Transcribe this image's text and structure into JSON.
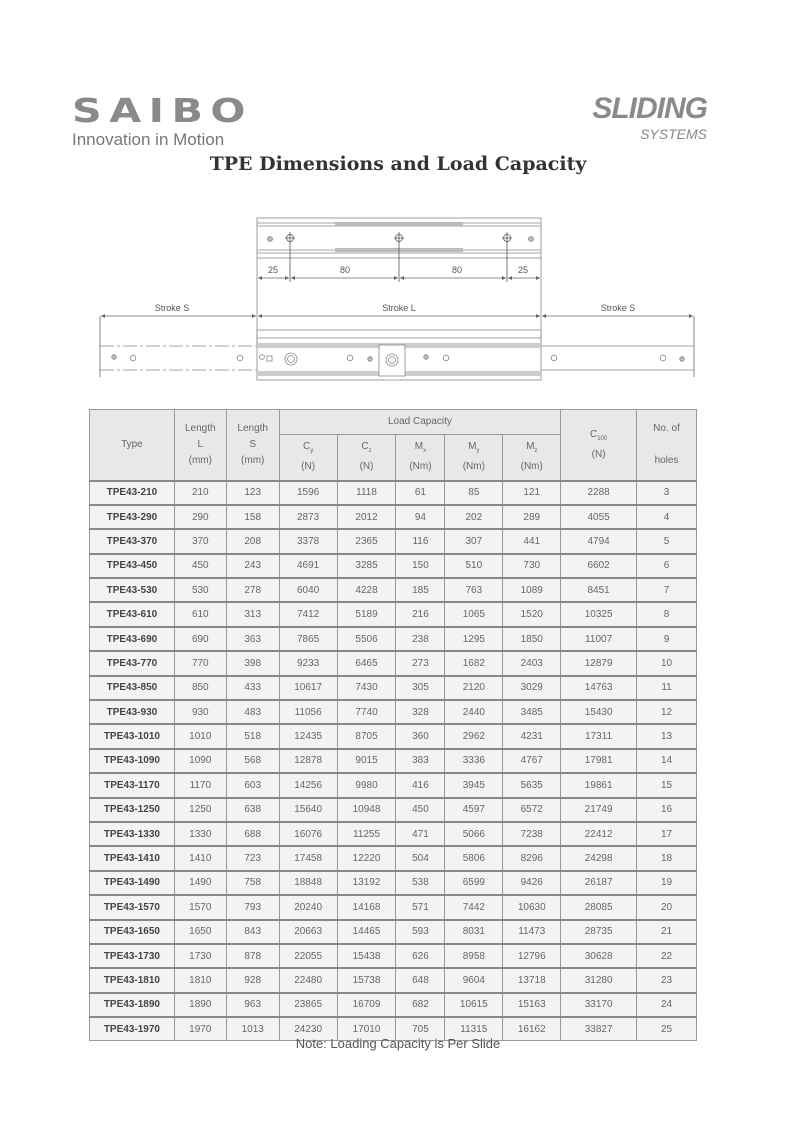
{
  "header": {
    "brand_logo": "SAIBO",
    "brand_tagline": "Innovation in Motion",
    "product_logo_line1": "SLIDING",
    "product_logo_line2": "SYSTEMS"
  },
  "title": "TPE  Dimensions and Load Capacity",
  "diagram": {
    "dims": [
      "25",
      "80",
      "80",
      "25"
    ],
    "stroke_left": "Stroke S",
    "stroke_center": "Stroke L",
    "stroke_right": "Stroke S"
  },
  "table": {
    "headers": {
      "type": "Type",
      "length_l": [
        "Length",
        "L",
        "(mm)"
      ],
      "length_s": [
        "Length",
        "S",
        "(mm)"
      ],
      "load_capacity": "Load Capacity",
      "cy": [
        "C",
        "y",
        "(N)"
      ],
      "cz": [
        "C",
        "z",
        "(N)"
      ],
      "mx": [
        "M",
        "x",
        "(Nm)"
      ],
      "my": [
        "M",
        "y",
        "(Nm)"
      ],
      "mz": [
        "M",
        "z",
        "(Nm)"
      ],
      "c100": [
        "C",
        "100",
        "(N)"
      ],
      "holes": [
        "No. of",
        "holes"
      ]
    },
    "rows": [
      [
        "TPE43-210",
        "210",
        "123",
        "1596",
        "1118",
        "61",
        "85",
        "121",
        "2288",
        "3"
      ],
      [
        "TPE43-290",
        "290",
        "158",
        "2873",
        "2012",
        "94",
        "202",
        "289",
        "4055",
        "4"
      ],
      [
        "TPE43-370",
        "370",
        "208",
        "3378",
        "2365",
        "116",
        "307",
        "441",
        "4794",
        "5"
      ],
      [
        "TPE43-450",
        "450",
        "243",
        "4691",
        "3285",
        "150",
        "510",
        "730",
        "6602",
        "6"
      ],
      [
        "TPE43-530",
        "530",
        "278",
        "6040",
        "4228",
        "185",
        "763",
        "1089",
        "8451",
        "7"
      ],
      [
        "TPE43-610",
        "610",
        "313",
        "7412",
        "5189",
        "216",
        "1065",
        "1520",
        "10325",
        "8"
      ],
      [
        "TPE43-690",
        "690",
        "363",
        "7865",
        "5506",
        "238",
        "1295",
        "1850",
        "11007",
        "9"
      ],
      [
        "TPE43-770",
        "770",
        "398",
        "9233",
        "6465",
        "273",
        "1682",
        "2403",
        "12879",
        "10"
      ],
      [
        "TPE43-850",
        "850",
        "433",
        "10617",
        "7430",
        "305",
        "2120",
        "3029",
        "14763",
        "11"
      ],
      [
        "TPE43-930",
        "930",
        "483",
        "11056",
        "7740",
        "328",
        "2440",
        "3485",
        "15430",
        "12"
      ],
      [
        "TPE43-1010",
        "1010",
        "518",
        "12435",
        "8705",
        "360",
        "2962",
        "4231",
        "17311",
        "13"
      ],
      [
        "TPE43-1090",
        "1090",
        "568",
        "12878",
        "9015",
        "383",
        "3336",
        "4767",
        "17981",
        "14"
      ],
      [
        "TPE43-1170",
        "1170",
        "603",
        "14256",
        "9980",
        "416",
        "3945",
        "5635",
        "19861",
        "15"
      ],
      [
        "TPE43-1250",
        "1250",
        "638",
        "15640",
        "10948",
        "450",
        "4597",
        "6572",
        "21749",
        "16"
      ],
      [
        "TPE43-1330",
        "1330",
        "688",
        "16076",
        "11255",
        "471",
        "5066",
        "7238",
        "22412",
        "17"
      ],
      [
        "TPE43-1410",
        "1410",
        "723",
        "17458",
        "12220",
        "504",
        "5806",
        "8296",
        "24298",
        "18"
      ],
      [
        "TPE43-1490",
        "1490",
        "758",
        "18848",
        "13192",
        "538",
        "6599",
        "9426",
        "26187",
        "19"
      ],
      [
        "TPE43-1570",
        "1570",
        "793",
        "20240",
        "14168",
        "571",
        "7442",
        "10630",
        "28085",
        "20"
      ],
      [
        "TPE43-1650",
        "1650",
        "843",
        "20663",
        "14465",
        "593",
        "8031",
        "11473",
        "28735",
        "21"
      ],
      [
        "TPE43-1730",
        "1730",
        "878",
        "22055",
        "15438",
        "626",
        "8958",
        "12796",
        "30628",
        "22"
      ],
      [
        "TPE43-1810",
        "1810",
        "928",
        "22480",
        "15738",
        "648",
        "9604",
        "13718",
        "31280",
        "23"
      ],
      [
        "TPE43-1890",
        "1890",
        "963",
        "23865",
        "16709",
        "682",
        "10615",
        "15163",
        "33170",
        "24"
      ],
      [
        "TPE43-1970",
        "1970",
        "1013",
        "24230",
        "17010",
        "705",
        "11315",
        "16162",
        "33827",
        "25"
      ]
    ]
  },
  "note": "Note: Loading Capacity is Per Slide"
}
